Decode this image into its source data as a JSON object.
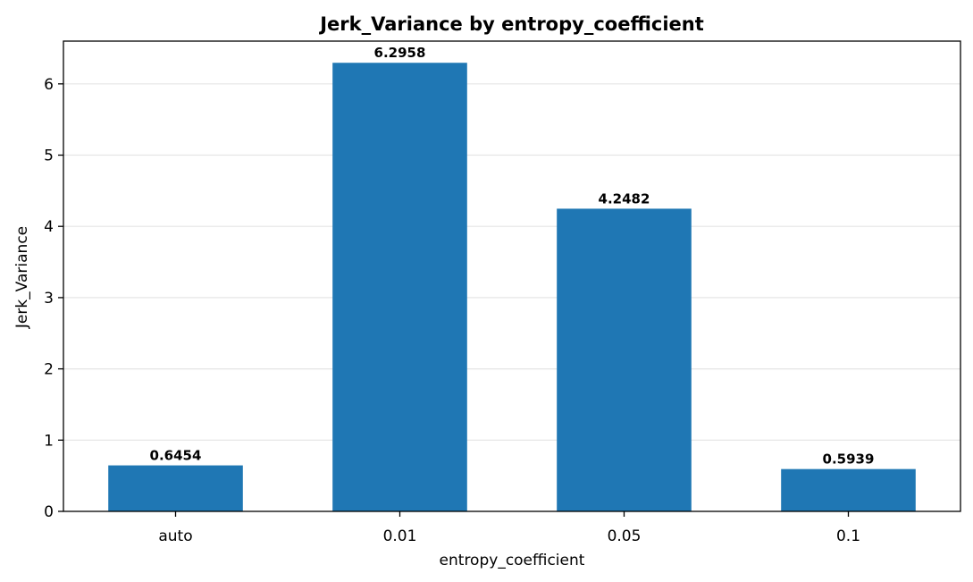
{
  "chart_data": {
    "type": "bar",
    "title": "Jerk_Variance by entropy_coefficient",
    "xlabel": "entropy_coefficient",
    "ylabel": "Jerk_Variance",
    "categories": [
      "auto",
      "0.01",
      "0.05",
      "0.1"
    ],
    "values": [
      0.6454,
      6.2958,
      4.2482,
      0.5939
    ],
    "value_labels": [
      "0.6454",
      "6.2958",
      "4.2482",
      "0.5939"
    ],
    "ylim": [
      0,
      6.6
    ],
    "yticks": [
      0,
      1,
      2,
      3,
      4,
      5,
      6
    ],
    "ytick_labels": [
      "0",
      "1",
      "2",
      "3",
      "4",
      "5",
      "6"
    ],
    "grid": "horizontal",
    "bar_color": "#1f77b4"
  }
}
